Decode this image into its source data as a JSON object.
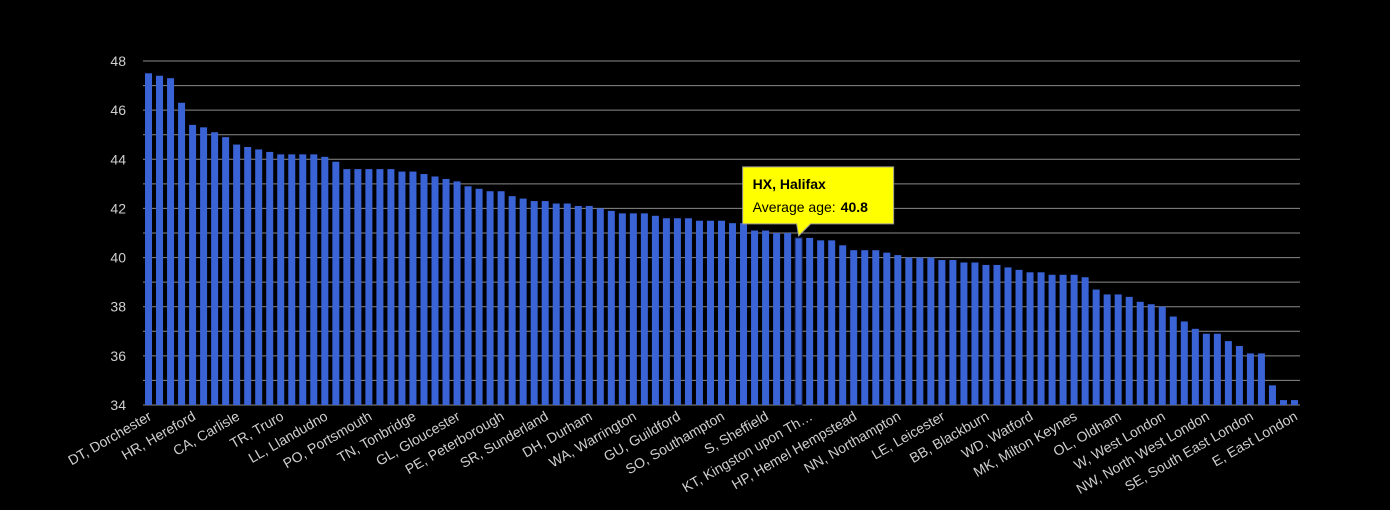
{
  "chart_data": {
    "type": "bar",
    "categories": [
      "DT, Dorchester",
      null,
      null,
      null,
      "HR, Hereford",
      null,
      null,
      null,
      "CA, Carlisle",
      null,
      null,
      null,
      "TR, Truro",
      null,
      null,
      null,
      "LL, Llandudno",
      null,
      null,
      null,
      "PO, Portsmouth",
      null,
      null,
      null,
      "TN, Tonbridge",
      null,
      null,
      null,
      "GL, Gloucester",
      null,
      null,
      null,
      "PE, Peterborough",
      null,
      null,
      null,
      "SR, Sunderland",
      null,
      null,
      null,
      "DH, Durham",
      null,
      null,
      null,
      "WA, Warrington",
      null,
      null,
      null,
      "GU, Guildford",
      null,
      null,
      null,
      "SO, Southampton",
      null,
      null,
      null,
      "S, Sheffield",
      null,
      null,
      null,
      "KT, Kingston upon Th…",
      null,
      null,
      null,
      "HP, Hemel Hempstead",
      null,
      null,
      null,
      "NN, Northampton",
      null,
      null,
      null,
      "LE, Leicester",
      null,
      null,
      null,
      "BB, Blackburn",
      null,
      null,
      null,
      "WD, Watford",
      null,
      null,
      null,
      "MK, Milton Keynes",
      null,
      null,
      null,
      "OL, Oldham",
      null,
      null,
      null,
      "W, West London",
      null,
      null,
      null,
      "NW, North West London",
      null,
      null,
      null,
      "SE, South East London",
      null,
      null,
      null,
      "E, East London"
    ],
    "values": [
      47.5,
      47.4,
      47.3,
      46.3,
      45.4,
      45.3,
      45.1,
      44.9,
      44.6,
      44.5,
      44.4,
      44.3,
      44.2,
      44.2,
      44.2,
      44.2,
      44.1,
      43.9,
      43.6,
      43.6,
      43.6,
      43.6,
      43.6,
      43.5,
      43.5,
      43.4,
      43.3,
      43.2,
      43.1,
      42.9,
      42.8,
      42.7,
      42.7,
      42.5,
      42.4,
      42.3,
      42.3,
      42.2,
      42.2,
      42.1,
      42.1,
      42.0,
      41.9,
      41.8,
      41.8,
      41.8,
      41.7,
      41.6,
      41.6,
      41.6,
      41.5,
      41.5,
      41.5,
      41.4,
      41.4,
      41.1,
      41.1,
      41.0,
      41.0,
      40.8,
      40.8,
      40.7,
      40.7,
      40.5,
      40.3,
      40.3,
      40.3,
      40.2,
      40.1,
      40.0,
      40.0,
      40.0,
      39.9,
      39.9,
      39.8,
      39.8,
      39.7,
      39.7,
      39.6,
      39.5,
      39.4,
      39.4,
      39.3,
      39.3,
      39.3,
      39.2,
      38.7,
      38.5,
      38.5,
      38.4,
      38.2,
      38.1,
      38.0,
      37.6,
      37.4,
      37.1,
      36.9,
      36.9,
      36.6,
      36.4,
      36.1,
      36.1,
      34.8,
      34.2,
      34.2
    ],
    "color": "#3a63d6",
    "ylim": [
      34,
      48
    ],
    "yticks": [
      34,
      36,
      38,
      40,
      42,
      44,
      46,
      48
    ],
    "minor_yticks": [
      35,
      37,
      39,
      41,
      43,
      45,
      47
    ],
    "grid": true,
    "tooltip": {
      "index": 59,
      "title": "HX, Halifax",
      "label": "Average age:",
      "value": 40.8,
      "color": "#ffff00"
    }
  }
}
